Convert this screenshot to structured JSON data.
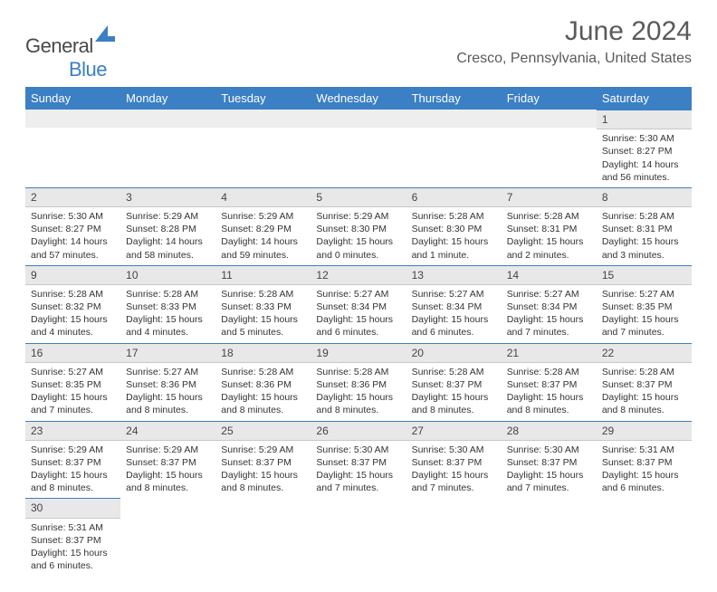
{
  "logo": {
    "text_general": "General",
    "text_blue": "Blue"
  },
  "title": "June 2024",
  "location": "Cresco, Pennsylvania, United States",
  "colors": {
    "header_bg": "#3b7fc4",
    "header_fg": "#ffffff",
    "daynum_bg": "#e8e8e8",
    "row_divider": "#3b7fc4",
    "text": "#333333",
    "title_color": "#5a5a5a"
  },
  "weekdays": [
    "Sunday",
    "Monday",
    "Tuesday",
    "Wednesday",
    "Thursday",
    "Friday",
    "Saturday"
  ],
  "grid": [
    [
      {
        "day": "",
        "sunrise": "",
        "sunset": "",
        "daylight": ""
      },
      {
        "day": "",
        "sunrise": "",
        "sunset": "",
        "daylight": ""
      },
      {
        "day": "",
        "sunrise": "",
        "sunset": "",
        "daylight": ""
      },
      {
        "day": "",
        "sunrise": "",
        "sunset": "",
        "daylight": ""
      },
      {
        "day": "",
        "sunrise": "",
        "sunset": "",
        "daylight": ""
      },
      {
        "day": "",
        "sunrise": "",
        "sunset": "",
        "daylight": ""
      },
      {
        "day": "1",
        "sunrise": "Sunrise: 5:30 AM",
        "sunset": "Sunset: 8:27 PM",
        "daylight": "Daylight: 14 hours and 56 minutes."
      }
    ],
    [
      {
        "day": "2",
        "sunrise": "Sunrise: 5:30 AM",
        "sunset": "Sunset: 8:27 PM",
        "daylight": "Daylight: 14 hours and 57 minutes."
      },
      {
        "day": "3",
        "sunrise": "Sunrise: 5:29 AM",
        "sunset": "Sunset: 8:28 PM",
        "daylight": "Daylight: 14 hours and 58 minutes."
      },
      {
        "day": "4",
        "sunrise": "Sunrise: 5:29 AM",
        "sunset": "Sunset: 8:29 PM",
        "daylight": "Daylight: 14 hours and 59 minutes."
      },
      {
        "day": "5",
        "sunrise": "Sunrise: 5:29 AM",
        "sunset": "Sunset: 8:30 PM",
        "daylight": "Daylight: 15 hours and 0 minutes."
      },
      {
        "day": "6",
        "sunrise": "Sunrise: 5:28 AM",
        "sunset": "Sunset: 8:30 PM",
        "daylight": "Daylight: 15 hours and 1 minute."
      },
      {
        "day": "7",
        "sunrise": "Sunrise: 5:28 AM",
        "sunset": "Sunset: 8:31 PM",
        "daylight": "Daylight: 15 hours and 2 minutes."
      },
      {
        "day": "8",
        "sunrise": "Sunrise: 5:28 AM",
        "sunset": "Sunset: 8:31 PM",
        "daylight": "Daylight: 15 hours and 3 minutes."
      }
    ],
    [
      {
        "day": "9",
        "sunrise": "Sunrise: 5:28 AM",
        "sunset": "Sunset: 8:32 PM",
        "daylight": "Daylight: 15 hours and 4 minutes."
      },
      {
        "day": "10",
        "sunrise": "Sunrise: 5:28 AM",
        "sunset": "Sunset: 8:33 PM",
        "daylight": "Daylight: 15 hours and 4 minutes."
      },
      {
        "day": "11",
        "sunrise": "Sunrise: 5:28 AM",
        "sunset": "Sunset: 8:33 PM",
        "daylight": "Daylight: 15 hours and 5 minutes."
      },
      {
        "day": "12",
        "sunrise": "Sunrise: 5:27 AM",
        "sunset": "Sunset: 8:34 PM",
        "daylight": "Daylight: 15 hours and 6 minutes."
      },
      {
        "day": "13",
        "sunrise": "Sunrise: 5:27 AM",
        "sunset": "Sunset: 8:34 PM",
        "daylight": "Daylight: 15 hours and 6 minutes."
      },
      {
        "day": "14",
        "sunrise": "Sunrise: 5:27 AM",
        "sunset": "Sunset: 8:34 PM",
        "daylight": "Daylight: 15 hours and 7 minutes."
      },
      {
        "day": "15",
        "sunrise": "Sunrise: 5:27 AM",
        "sunset": "Sunset: 8:35 PM",
        "daylight": "Daylight: 15 hours and 7 minutes."
      }
    ],
    [
      {
        "day": "16",
        "sunrise": "Sunrise: 5:27 AM",
        "sunset": "Sunset: 8:35 PM",
        "daylight": "Daylight: 15 hours and 7 minutes."
      },
      {
        "day": "17",
        "sunrise": "Sunrise: 5:27 AM",
        "sunset": "Sunset: 8:36 PM",
        "daylight": "Daylight: 15 hours and 8 minutes."
      },
      {
        "day": "18",
        "sunrise": "Sunrise: 5:28 AM",
        "sunset": "Sunset: 8:36 PM",
        "daylight": "Daylight: 15 hours and 8 minutes."
      },
      {
        "day": "19",
        "sunrise": "Sunrise: 5:28 AM",
        "sunset": "Sunset: 8:36 PM",
        "daylight": "Daylight: 15 hours and 8 minutes."
      },
      {
        "day": "20",
        "sunrise": "Sunrise: 5:28 AM",
        "sunset": "Sunset: 8:37 PM",
        "daylight": "Daylight: 15 hours and 8 minutes."
      },
      {
        "day": "21",
        "sunrise": "Sunrise: 5:28 AM",
        "sunset": "Sunset: 8:37 PM",
        "daylight": "Daylight: 15 hours and 8 minutes."
      },
      {
        "day": "22",
        "sunrise": "Sunrise: 5:28 AM",
        "sunset": "Sunset: 8:37 PM",
        "daylight": "Daylight: 15 hours and 8 minutes."
      }
    ],
    [
      {
        "day": "23",
        "sunrise": "Sunrise: 5:29 AM",
        "sunset": "Sunset: 8:37 PM",
        "daylight": "Daylight: 15 hours and 8 minutes."
      },
      {
        "day": "24",
        "sunrise": "Sunrise: 5:29 AM",
        "sunset": "Sunset: 8:37 PM",
        "daylight": "Daylight: 15 hours and 8 minutes."
      },
      {
        "day": "25",
        "sunrise": "Sunrise: 5:29 AM",
        "sunset": "Sunset: 8:37 PM",
        "daylight": "Daylight: 15 hours and 8 minutes."
      },
      {
        "day": "26",
        "sunrise": "Sunrise: 5:30 AM",
        "sunset": "Sunset: 8:37 PM",
        "daylight": "Daylight: 15 hours and 7 minutes."
      },
      {
        "day": "27",
        "sunrise": "Sunrise: 5:30 AM",
        "sunset": "Sunset: 8:37 PM",
        "daylight": "Daylight: 15 hours and 7 minutes."
      },
      {
        "day": "28",
        "sunrise": "Sunrise: 5:30 AM",
        "sunset": "Sunset: 8:37 PM",
        "daylight": "Daylight: 15 hours and 7 minutes."
      },
      {
        "day": "29",
        "sunrise": "Sunrise: 5:31 AM",
        "sunset": "Sunset: 8:37 PM",
        "daylight": "Daylight: 15 hours and 6 minutes."
      }
    ],
    [
      {
        "day": "30",
        "sunrise": "Sunrise: 5:31 AM",
        "sunset": "Sunset: 8:37 PM",
        "daylight": "Daylight: 15 hours and 6 minutes."
      },
      {
        "day": "",
        "sunrise": "",
        "sunset": "",
        "daylight": ""
      },
      {
        "day": "",
        "sunrise": "",
        "sunset": "",
        "daylight": ""
      },
      {
        "day": "",
        "sunrise": "",
        "sunset": "",
        "daylight": ""
      },
      {
        "day": "",
        "sunrise": "",
        "sunset": "",
        "daylight": ""
      },
      {
        "day": "",
        "sunrise": "",
        "sunset": "",
        "daylight": ""
      },
      {
        "day": "",
        "sunrise": "",
        "sunset": "",
        "daylight": ""
      }
    ]
  ]
}
